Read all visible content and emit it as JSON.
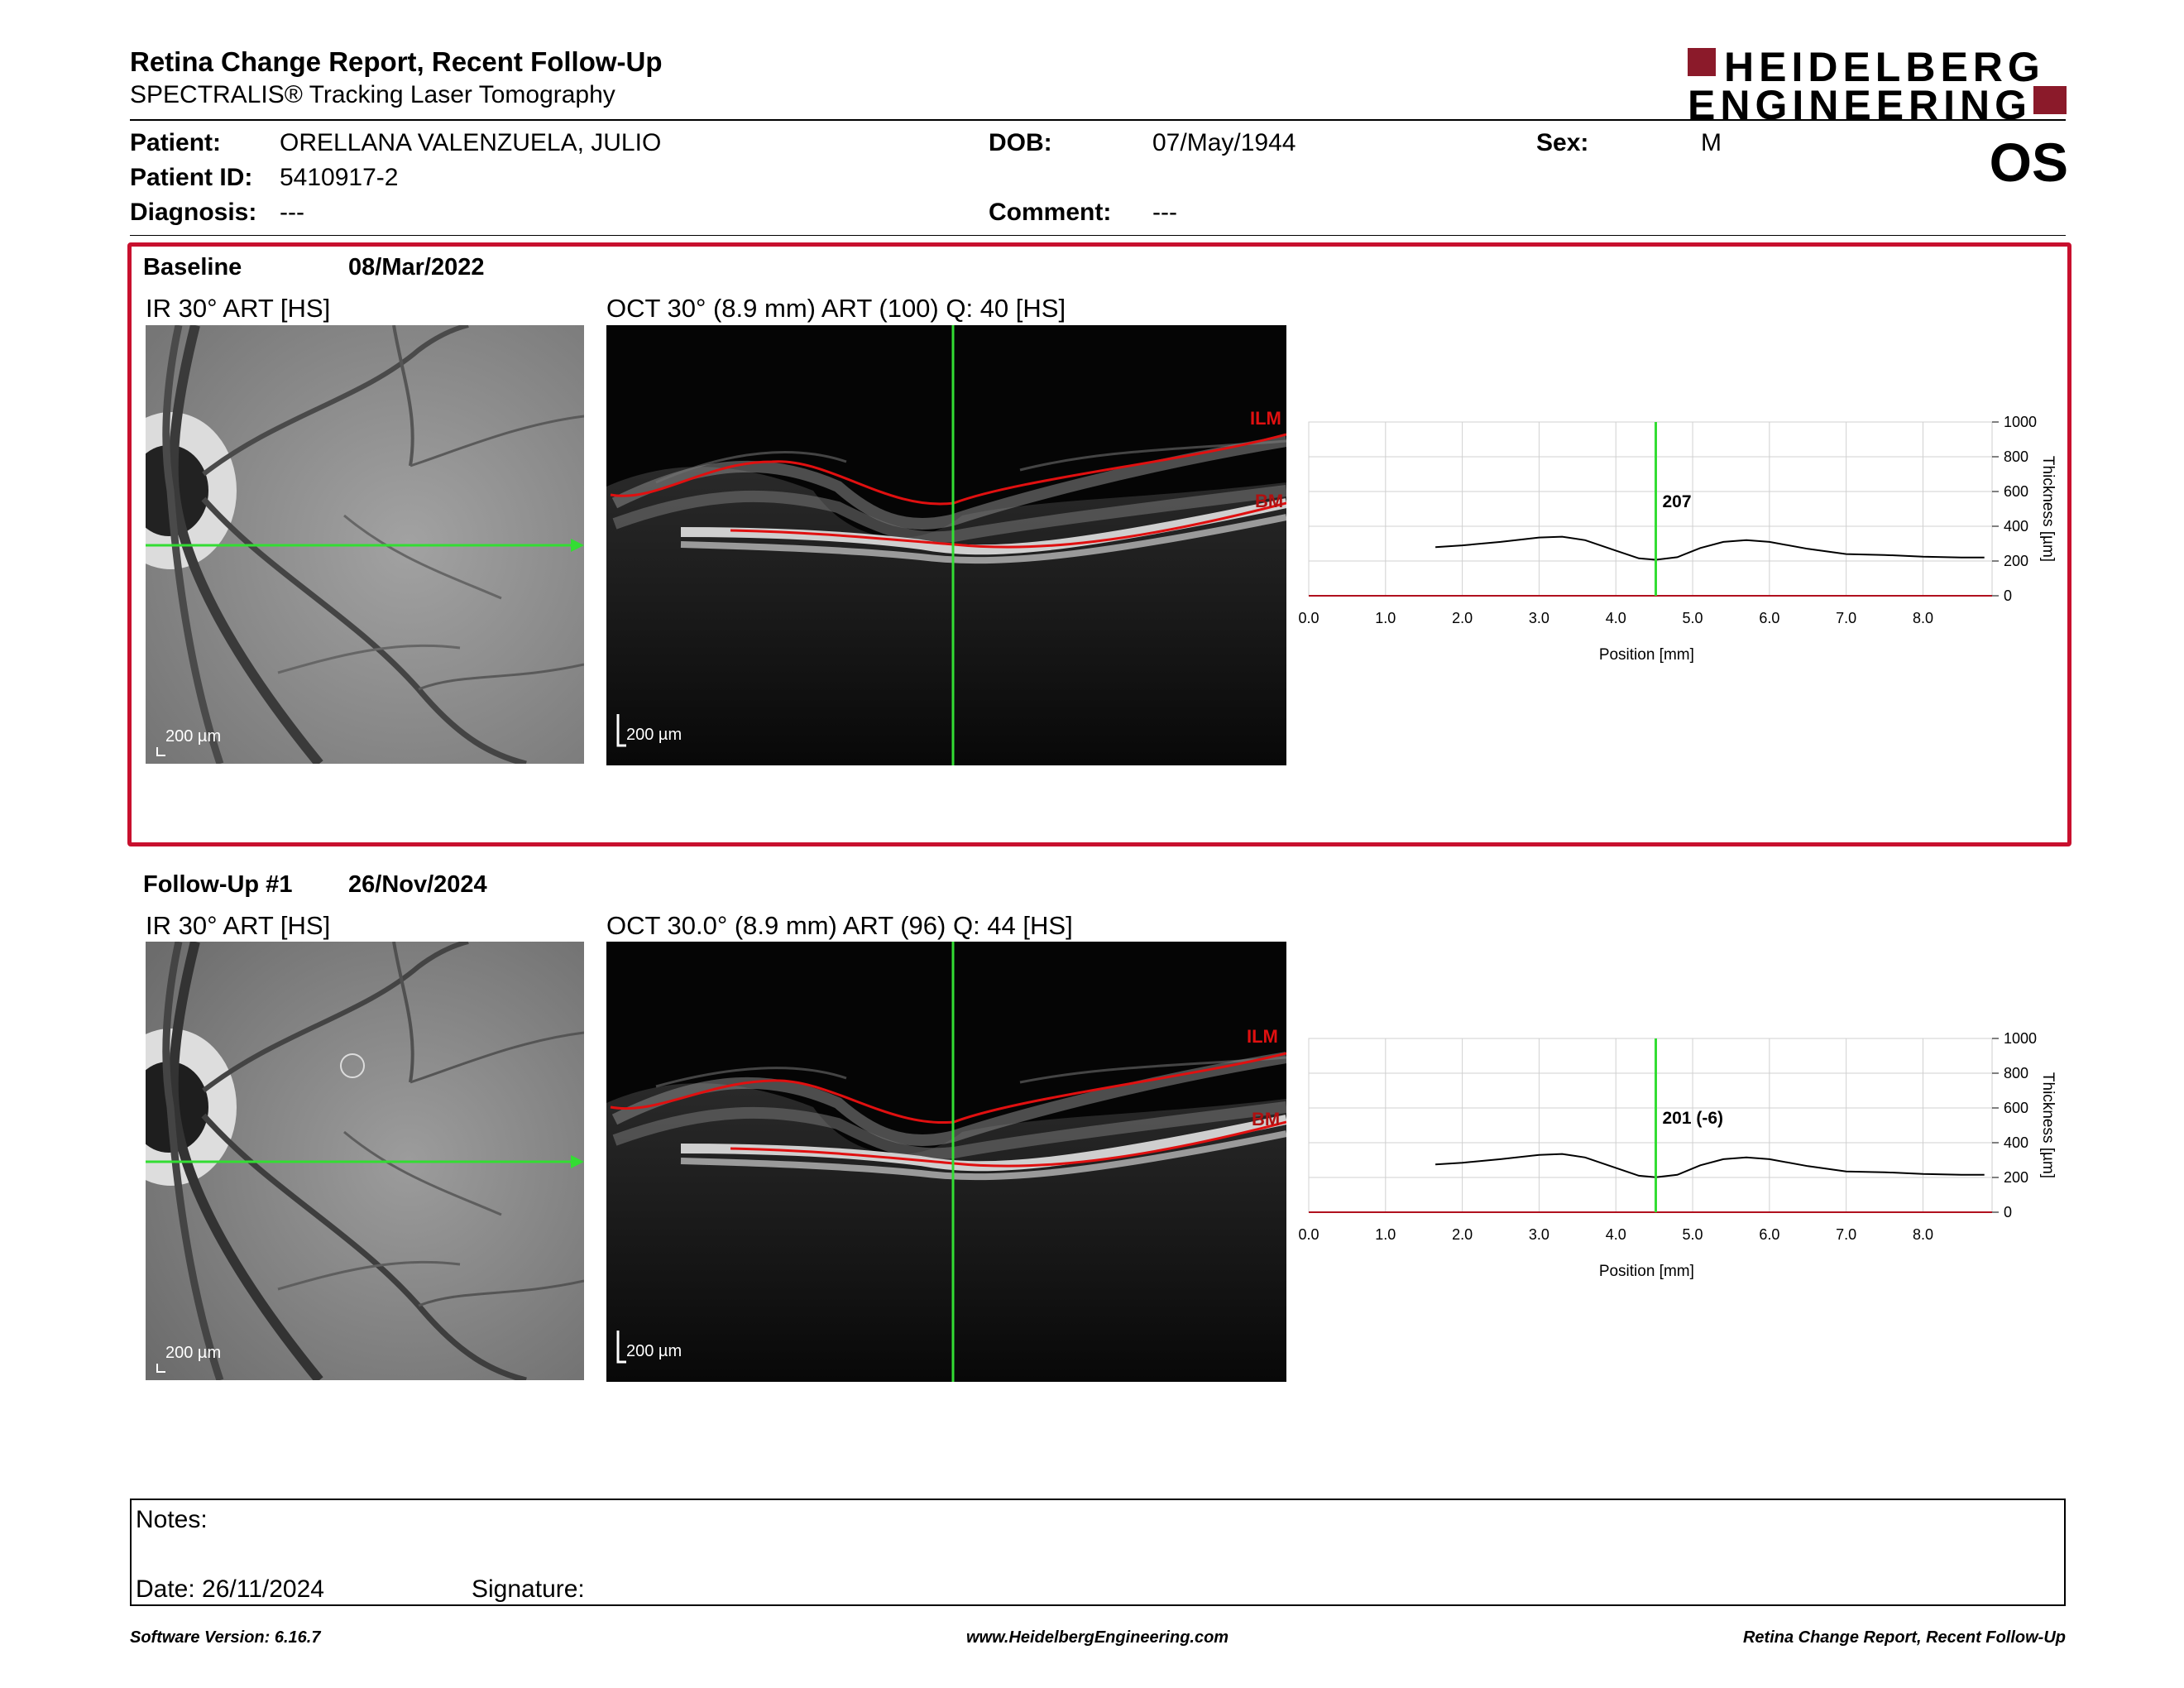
{
  "header": {
    "title": "Retina Change Report, Recent Follow-Up",
    "subtitle": "SPECTRALIS® Tracking Laser Tomography",
    "logo_line1": "HEIDELBERG",
    "logo_line2": "ENGINEERING",
    "eye": "OS"
  },
  "patient": {
    "patient_label": "Patient:",
    "patient_value": "ORELLANA VALENZUELA, JULIO",
    "id_label": "Patient ID:",
    "id_value": "5410917-2",
    "diagnosis_label": "Diagnosis:",
    "diagnosis_value": "---",
    "dob_label": "DOB:",
    "dob_value": "07/May/1944",
    "comment_label": "Comment:",
    "comment_value": "---",
    "sex_label": "Sex:",
    "sex_value": "M"
  },
  "baseline": {
    "label": "Baseline",
    "date": "08/Mar/2022",
    "ir_title": "IR 30° ART [HS]",
    "oct_title": "OCT 30° (8.9 mm) ART (100) Q: 40 [HS]",
    "ir_scale": "200 µm",
    "oct_scale": "200 µm",
    "ilm": "ILM",
    "bm": "BM"
  },
  "followup": {
    "label": "Follow-Up #1",
    "date": "26/Nov/2024",
    "ir_title": "IR 30° ART [HS]",
    "oct_title": "OCT 30.0° (8.9 mm) ART (96) Q: 44 [HS]",
    "ir_scale": "200 µm",
    "oct_scale": "200 µm",
    "ilm": "ILM",
    "bm": "BM"
  },
  "chart_data": [
    {
      "type": "line",
      "title": "",
      "xlabel": "Position [mm]",
      "ylabel": "Thickness [µm]",
      "xlim": [
        0,
        8.9
      ],
      "ylim": [
        0,
        1000
      ],
      "x_ticks": [
        "0.0",
        "1.0",
        "2.0",
        "3.0",
        "4.0",
        "5.0",
        "6.0",
        "7.0",
        "8.0"
      ],
      "y_ticks": [
        "0",
        "200",
        "400",
        "600",
        "800",
        "1000"
      ],
      "grid": true,
      "marker_position": 4.52,
      "marker_label": "207",
      "series": [
        {
          "x": [
            1.65,
            2.0,
            2.5,
            3.0,
            3.3,
            3.6,
            4.0,
            4.3,
            4.52,
            4.8,
            5.1,
            5.4,
            5.7,
            6.0,
            6.5,
            7.0,
            7.5,
            8.0,
            8.5,
            8.8
          ],
          "y": [
            280,
            290,
            310,
            335,
            340,
            320,
            260,
            215,
            207,
            222,
            275,
            310,
            320,
            310,
            270,
            240,
            235,
            225,
            220,
            220
          ]
        }
      ]
    },
    {
      "type": "line",
      "title": "",
      "xlabel": "Position [mm]",
      "ylabel": "Thickness [µm]",
      "xlim": [
        0,
        8.9
      ],
      "ylim": [
        0,
        1000
      ],
      "x_ticks": [
        "0.0",
        "1.0",
        "2.0",
        "3.0",
        "4.0",
        "5.0",
        "6.0",
        "7.0",
        "8.0"
      ],
      "y_ticks": [
        "0",
        "200",
        "400",
        "600",
        "800",
        "1000"
      ],
      "grid": true,
      "marker_position": 4.52,
      "marker_label": "201 (-6)",
      "series": [
        {
          "x": [
            1.65,
            2.0,
            2.5,
            3.0,
            3.3,
            3.6,
            4.0,
            4.3,
            4.52,
            4.8,
            5.1,
            5.4,
            5.7,
            6.0,
            6.5,
            7.0,
            7.5,
            8.0,
            8.5,
            8.8
          ],
          "y": [
            275,
            285,
            305,
            330,
            335,
            315,
            255,
            210,
            201,
            215,
            270,
            305,
            315,
            305,
            265,
            235,
            230,
            220,
            215,
            215
          ]
        }
      ]
    }
  ],
  "notes": {
    "notes_label": "Notes:",
    "date_label": "Date: 26/11/2024",
    "signature_label": "Signature:"
  },
  "footer": {
    "left": "Software Version: 6.16.7",
    "center": "www.HeidelbergEngineering.com",
    "right": "Retina Change Report, Recent Follow-Up"
  },
  "colors": {
    "accent_red": "#c8102e",
    "logo_red": "#8b1a2a",
    "scan_line": "#33dd33",
    "layer_line": "#e01010"
  }
}
